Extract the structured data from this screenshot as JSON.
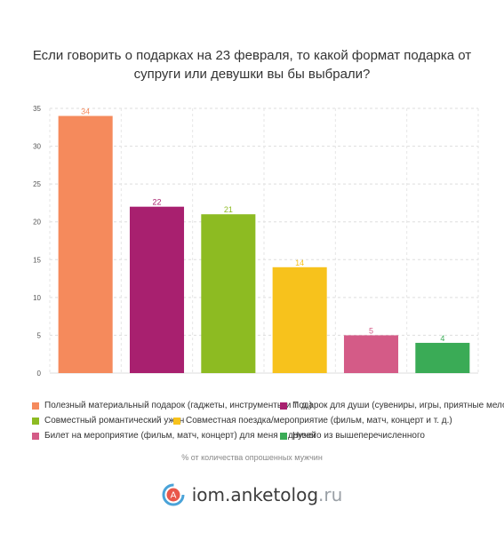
{
  "chart_data": {
    "type": "bar",
    "title": "Если говорить о подарках на 23 февраля, то какой формат подарка от супруги или девушки вы бы выбрали?",
    "categories": [
      "Полезный материальный подарок (гаджеты, инструменты и т. д.)",
      "Подарок для души (сувениры, игры, приятные мелочи)",
      "Совместный романтический ужин",
      "Совместная поездка/мероприятие (фильм, матч, концерт и т. д.)",
      "Билет на мероприятие (фильм, матч, концерт) для меня и друзей",
      "Ничего из вышеперечисленного"
    ],
    "values": [
      34,
      22,
      21,
      14,
      5,
      4
    ],
    "colors": [
      "#f58a5c",
      "#a8206f",
      "#8dbb22",
      "#f7c21c",
      "#d45b87",
      "#3aab56"
    ],
    "ylim": [
      0,
      35
    ],
    "yticks": [
      0,
      5,
      10,
      15,
      20,
      25,
      30,
      35
    ],
    "grid": true,
    "legend_position": "bottom",
    "note": "% от количества опрошенных мужчин"
  },
  "brand": {
    "name": "iom.anketolog",
    "tld": ".ru",
    "logo_letter": "A"
  }
}
